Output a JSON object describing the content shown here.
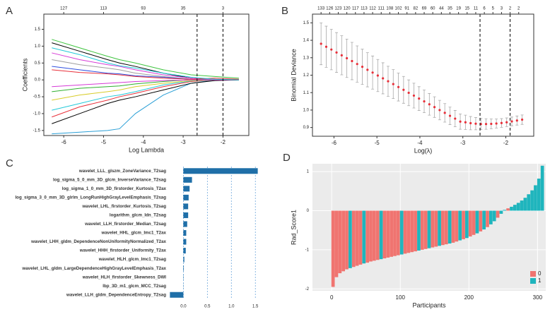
{
  "chart_data": [
    {
      "type": "line",
      "panel_label": "A",
      "xlabel": "Log Lambda",
      "ylabel": "Coefficients",
      "xlim": [
        -6.5,
        -1.35
      ],
      "ylim": [
        -1.65,
        1.95
      ],
      "grid": false,
      "xticks": [
        -6,
        -5,
        -4,
        -3,
        -2
      ],
      "yticks": [
        -1.5,
        {
          "value": -1,
          "label": "-1.0"
        },
        -0.5,
        {
          "value": 0,
          "label": "0.0"
        },
        0.5,
        {
          "value": 1,
          "label": "1.0"
        },
        1.5
      ],
      "top_ticks": [
        {
          "value": -6,
          "label": "127"
        },
        {
          "value": -5,
          "label": "113"
        },
        {
          "value": -4,
          "label": "93"
        },
        {
          "value": -3,
          "label": "35"
        },
        {
          "value": -2,
          "label": "3"
        }
      ],
      "vlines": [
        -2.65,
        -2.0
      ],
      "x": [
        -6.3,
        -5.6,
        -4.9,
        -4.6,
        -4.2,
        -3.5,
        -2.8,
        -2.2,
        -1.6
      ],
      "series": [
        {
          "color": "#2a9fd6",
          "values": [
            -1.6,
            -1.55,
            -1.5,
            -1.45,
            -1.0,
            -0.45,
            -0.1,
            0,
            0
          ]
        },
        {
          "color": "#3ec43e",
          "values": [
            1.2,
            0.95,
            0.7,
            0.6,
            0.5,
            0.3,
            0.15,
            0.1,
            0.05
          ]
        },
        {
          "color": "#000000",
          "values": [
            1.1,
            0.85,
            0.6,
            0.5,
            0.4,
            0.2,
            0.05,
            0,
            0
          ]
        },
        {
          "color": "#e8303a",
          "values": [
            -1.1,
            -0.8,
            -0.6,
            -0.5,
            -0.4,
            -0.2,
            -0.05,
            0,
            0
          ]
        },
        {
          "color": "#d63ad6",
          "values": [
            0.8,
            0.6,
            0.45,
            0.4,
            0.3,
            0.15,
            0.05,
            0,
            0
          ]
        },
        {
          "color": "#22c9d9",
          "values": [
            -0.9,
            -0.7,
            -0.5,
            -0.45,
            -0.35,
            -0.15,
            -0.03,
            0,
            0
          ]
        },
        {
          "color": "#9e9e9e",
          "values": [
            0.6,
            0.45,
            0.35,
            0.3,
            0.2,
            0.1,
            0.02,
            0,
            0
          ]
        },
        {
          "color": "#d8cc2a",
          "values": [
            -0.6,
            -0.45,
            -0.35,
            -0.3,
            -0.2,
            -0.1,
            -0.02,
            0,
            0
          ]
        },
        {
          "color": "#3050e0",
          "values": [
            0.4,
            0.3,
            0.2,
            0.18,
            0.12,
            0.08,
            0.02,
            0,
            0
          ]
        },
        {
          "color": "#30b030",
          "values": [
            -0.35,
            -0.25,
            -0.2,
            -0.18,
            -0.12,
            -0.05,
            0.01,
            0,
            0
          ]
        },
        {
          "color": "#e8303a",
          "values": [
            0.3,
            0.22,
            0.18,
            0.15,
            0.1,
            0.05,
            0.02,
            0.05,
            0.02
          ]
        },
        {
          "color": "#000000",
          "values": [
            -1.3,
            -1.0,
            -0.7,
            -0.6,
            -0.5,
            -0.3,
            -0.1,
            -0.02,
            0
          ]
        },
        {
          "color": "#d63ad6",
          "values": [
            -0.2,
            -0.15,
            -0.1,
            -0.08,
            -0.05,
            -0.02,
            0,
            0,
            0
          ]
        },
        {
          "color": "#22c9d9",
          "values": [
            0.95,
            0.75,
            0.5,
            0.42,
            0.35,
            0.2,
            0.08,
            0.02,
            0
          ]
        }
      ]
    },
    {
      "type": "errorbar",
      "panel_label": "B",
      "xlabel": "Log(λ)",
      "ylabel": "Binomial Deviance",
      "xlim": [
        -6.5,
        -1.35
      ],
      "ylim": [
        0.85,
        1.55
      ],
      "grid": false,
      "color": "#e8303a",
      "error_color": "#aaaaaa",
      "xticks": [
        -6,
        -5,
        -4,
        -3,
        -2
      ],
      "yticks": [
        0.9,
        {
          "value": 1,
          "label": "1.0"
        },
        1.1,
        1.2,
        1.3,
        1.4,
        1.5
      ],
      "top_ticks": [
        {
          "value": -6.3,
          "label": "133"
        },
        {
          "value": -6.1,
          "label": "126"
        },
        {
          "value": -5.9,
          "label": "123"
        },
        {
          "value": -5.7,
          "label": "120"
        },
        {
          "value": -5.5,
          "label": "117"
        },
        {
          "value": -5.3,
          "label": "113"
        },
        {
          "value": -5.1,
          "label": "112"
        },
        {
          "value": -4.9,
          "label": "111"
        },
        {
          "value": -4.7,
          "label": "108"
        },
        {
          "value": -4.5,
          "label": "102"
        },
        {
          "value": -4.3,
          "label": "91"
        },
        {
          "value": -4.1,
          "label": "82"
        },
        {
          "value": -3.9,
          "label": "69"
        },
        {
          "value": -3.7,
          "label": "60"
        },
        {
          "value": -3.5,
          "label": "44"
        },
        {
          "value": -3.3,
          "label": "35"
        },
        {
          "value": -3.1,
          "label": "19"
        },
        {
          "value": -2.9,
          "label": "15"
        },
        {
          "value": -2.7,
          "label": "11"
        },
        {
          "value": -2.5,
          "label": "6"
        },
        {
          "value": -2.3,
          "label": "5"
        },
        {
          "value": -2.1,
          "label": "3"
        },
        {
          "value": -1.9,
          "label": "2"
        },
        {
          "value": -1.7,
          "label": "2"
        }
      ],
      "vlines": [
        -2.6,
        -1.9
      ],
      "x": [
        -6.3,
        -6.18,
        -6.06,
        -5.94,
        -5.82,
        -5.7,
        -5.58,
        -5.46,
        -5.34,
        -5.22,
        -5.1,
        -4.98,
        -4.86,
        -4.74,
        -4.62,
        -4.5,
        -4.38,
        -4.26,
        -4.14,
        -4.02,
        -3.9,
        -3.78,
        -3.66,
        -3.54,
        -3.42,
        -3.3,
        -3.18,
        -3.06,
        -2.94,
        -2.82,
        -2.7,
        -2.58,
        -2.46,
        -2.34,
        -2.22,
        -2.1,
        -1.98,
        -1.86,
        -1.74,
        -1.62
      ],
      "values": [
        1.38,
        1.363,
        1.347,
        1.33,
        1.314,
        1.297,
        1.281,
        1.264,
        1.248,
        1.231,
        1.215,
        1.198,
        1.182,
        1.165,
        1.149,
        1.132,
        1.116,
        1.099,
        1.083,
        1.066,
        1.05,
        1.033,
        1.017,
        1.0,
        0.984,
        0.967,
        0.951,
        0.934,
        0.93,
        0.925,
        0.922,
        0.92,
        0.92,
        0.921,
        0.923,
        0.926,
        0.93,
        0.935,
        0.94,
        0.945
      ],
      "errors": [
        0.12,
        0.118,
        0.116,
        0.114,
        0.112,
        0.11,
        0.107,
        0.104,
        0.101,
        0.098,
        0.095,
        0.092,
        0.089,
        0.086,
        0.083,
        0.08,
        0.077,
        0.074,
        0.071,
        0.068,
        0.065,
        0.062,
        0.059,
        0.056,
        0.053,
        0.05,
        0.047,
        0.044,
        0.041,
        0.038,
        0.035,
        0.032,
        0.03,
        0.028,
        0.026,
        0.025,
        0.025,
        0.025,
        0.026,
        0.027
      ]
    },
    {
      "type": "bar",
      "orientation": "horizontal",
      "panel_label": "C",
      "color": "#1f6fa8",
      "xlim": [
        -0.3,
        1.6
      ],
      "grid": true,
      "xticks": [
        {
          "value": 0,
          "label": "0.0"
        },
        0.5,
        {
          "value": 1,
          "label": "1.0"
        },
        1.5
      ],
      "categories": [
        "wavelet_LLL_glszm_ZoneVariance_T2sag",
        "log_sigma_5_0_mm_3D_glcm_InverseVariance_T2sag",
        "log_sigma_1_0_mm_3D_firstorder_Kurtosis_T2ax",
        "log_sigma_3_0_mm_3D_glrlm_LongRunHighGrayLevelEmphasis_T2sag",
        "wavelet_LHL_firstorder_Kurtosis_T2sag",
        "logarithm_glcm_Idn_T2sag",
        "wavelet_LLH_firstorder_Median_T2sag",
        "wavelet_HHL_glcm_Imc1_T2ax",
        "wavelet_LHH_gldm_DependenceNonUniformityNormalized_T2ax",
        "wavelet_HHH_firstorder_Uniformity_T2ax",
        "wavelet_HLH_glcm_Imc1_T2sag",
        "wavelet_LHL_gldm_LargeDependenceHighGrayLevelEmphasis_T2ax",
        "wavelet_HLH_firstorder_Skewness_DWI",
        "lbp_3D_m1_glcm_MCC_T2sag",
        "wavelet_LLH_gldm_DependenceEntropy_T2sag"
      ],
      "values": [
        1.55,
        0.18,
        0.13,
        0.11,
        0.1,
        0.1,
        0.08,
        0.06,
        0.06,
        0.05,
        0.02,
        0.01,
        0.005,
        0.003,
        -0.28
      ]
    },
    {
      "type": "bar",
      "orientation": "vertical",
      "panel_label": "D",
      "xlabel": "Participants",
      "ylabel": "Rad_Score1",
      "xlim": [
        -28,
        312
      ],
      "ylim": [
        -2.05,
        1.2
      ],
      "grid": true,
      "legend": "bottom-right",
      "xticks": [
        0,
        100,
        200,
        300
      ],
      "yticks": [
        -2,
        -1,
        0,
        1
      ],
      "series": [
        {
          "name": "0",
          "color": "#f07470",
          "x": [
            2,
            7,
            12,
            17,
            22,
            32,
            37,
            42,
            52,
            57,
            62,
            67,
            77,
            82,
            87,
            92,
            97,
            107,
            112,
            117,
            122,
            132,
            137,
            147,
            152,
            162,
            167,
            177,
            182,
            192,
            202,
            207,
            217,
            227,
            242,
            257
          ],
          "values": [
            -1.95,
            -1.7,
            -1.6,
            -1.55,
            -1.5,
            -1.44,
            -1.41,
            -1.38,
            -1.33,
            -1.3,
            -1.28,
            -1.26,
            -1.22,
            -1.2,
            -1.18,
            -1.16,
            -1.14,
            -1.1,
            -1.08,
            -1.06,
            -1.04,
            -1.0,
            -0.98,
            -0.94,
            -0.92,
            -0.88,
            -0.86,
            -0.82,
            -0.79,
            -0.73,
            -0.66,
            -0.62,
            -0.53,
            -0.42,
            -0.18,
            0.06
          ]
        },
        {
          "name": "1",
          "color": "#1fb5bd",
          "x": [
            27,
            47,
            72,
            102,
            127,
            142,
            157,
            172,
            187,
            197,
            212,
            222,
            232,
            237,
            247,
            252,
            262,
            267,
            272,
            277,
            282,
            287,
            292,
            297,
            302,
            307
          ],
          "values": [
            -1.47,
            -1.35,
            -1.24,
            -1.12,
            -1.02,
            -0.96,
            -0.9,
            -0.84,
            -0.76,
            -0.7,
            -0.58,
            -0.48,
            -0.35,
            -0.27,
            -0.08,
            0.02,
            0.1,
            0.15,
            0.2,
            0.26,
            0.33,
            0.42,
            0.52,
            0.65,
            0.82,
            1.15
          ]
        }
      ]
    }
  ]
}
